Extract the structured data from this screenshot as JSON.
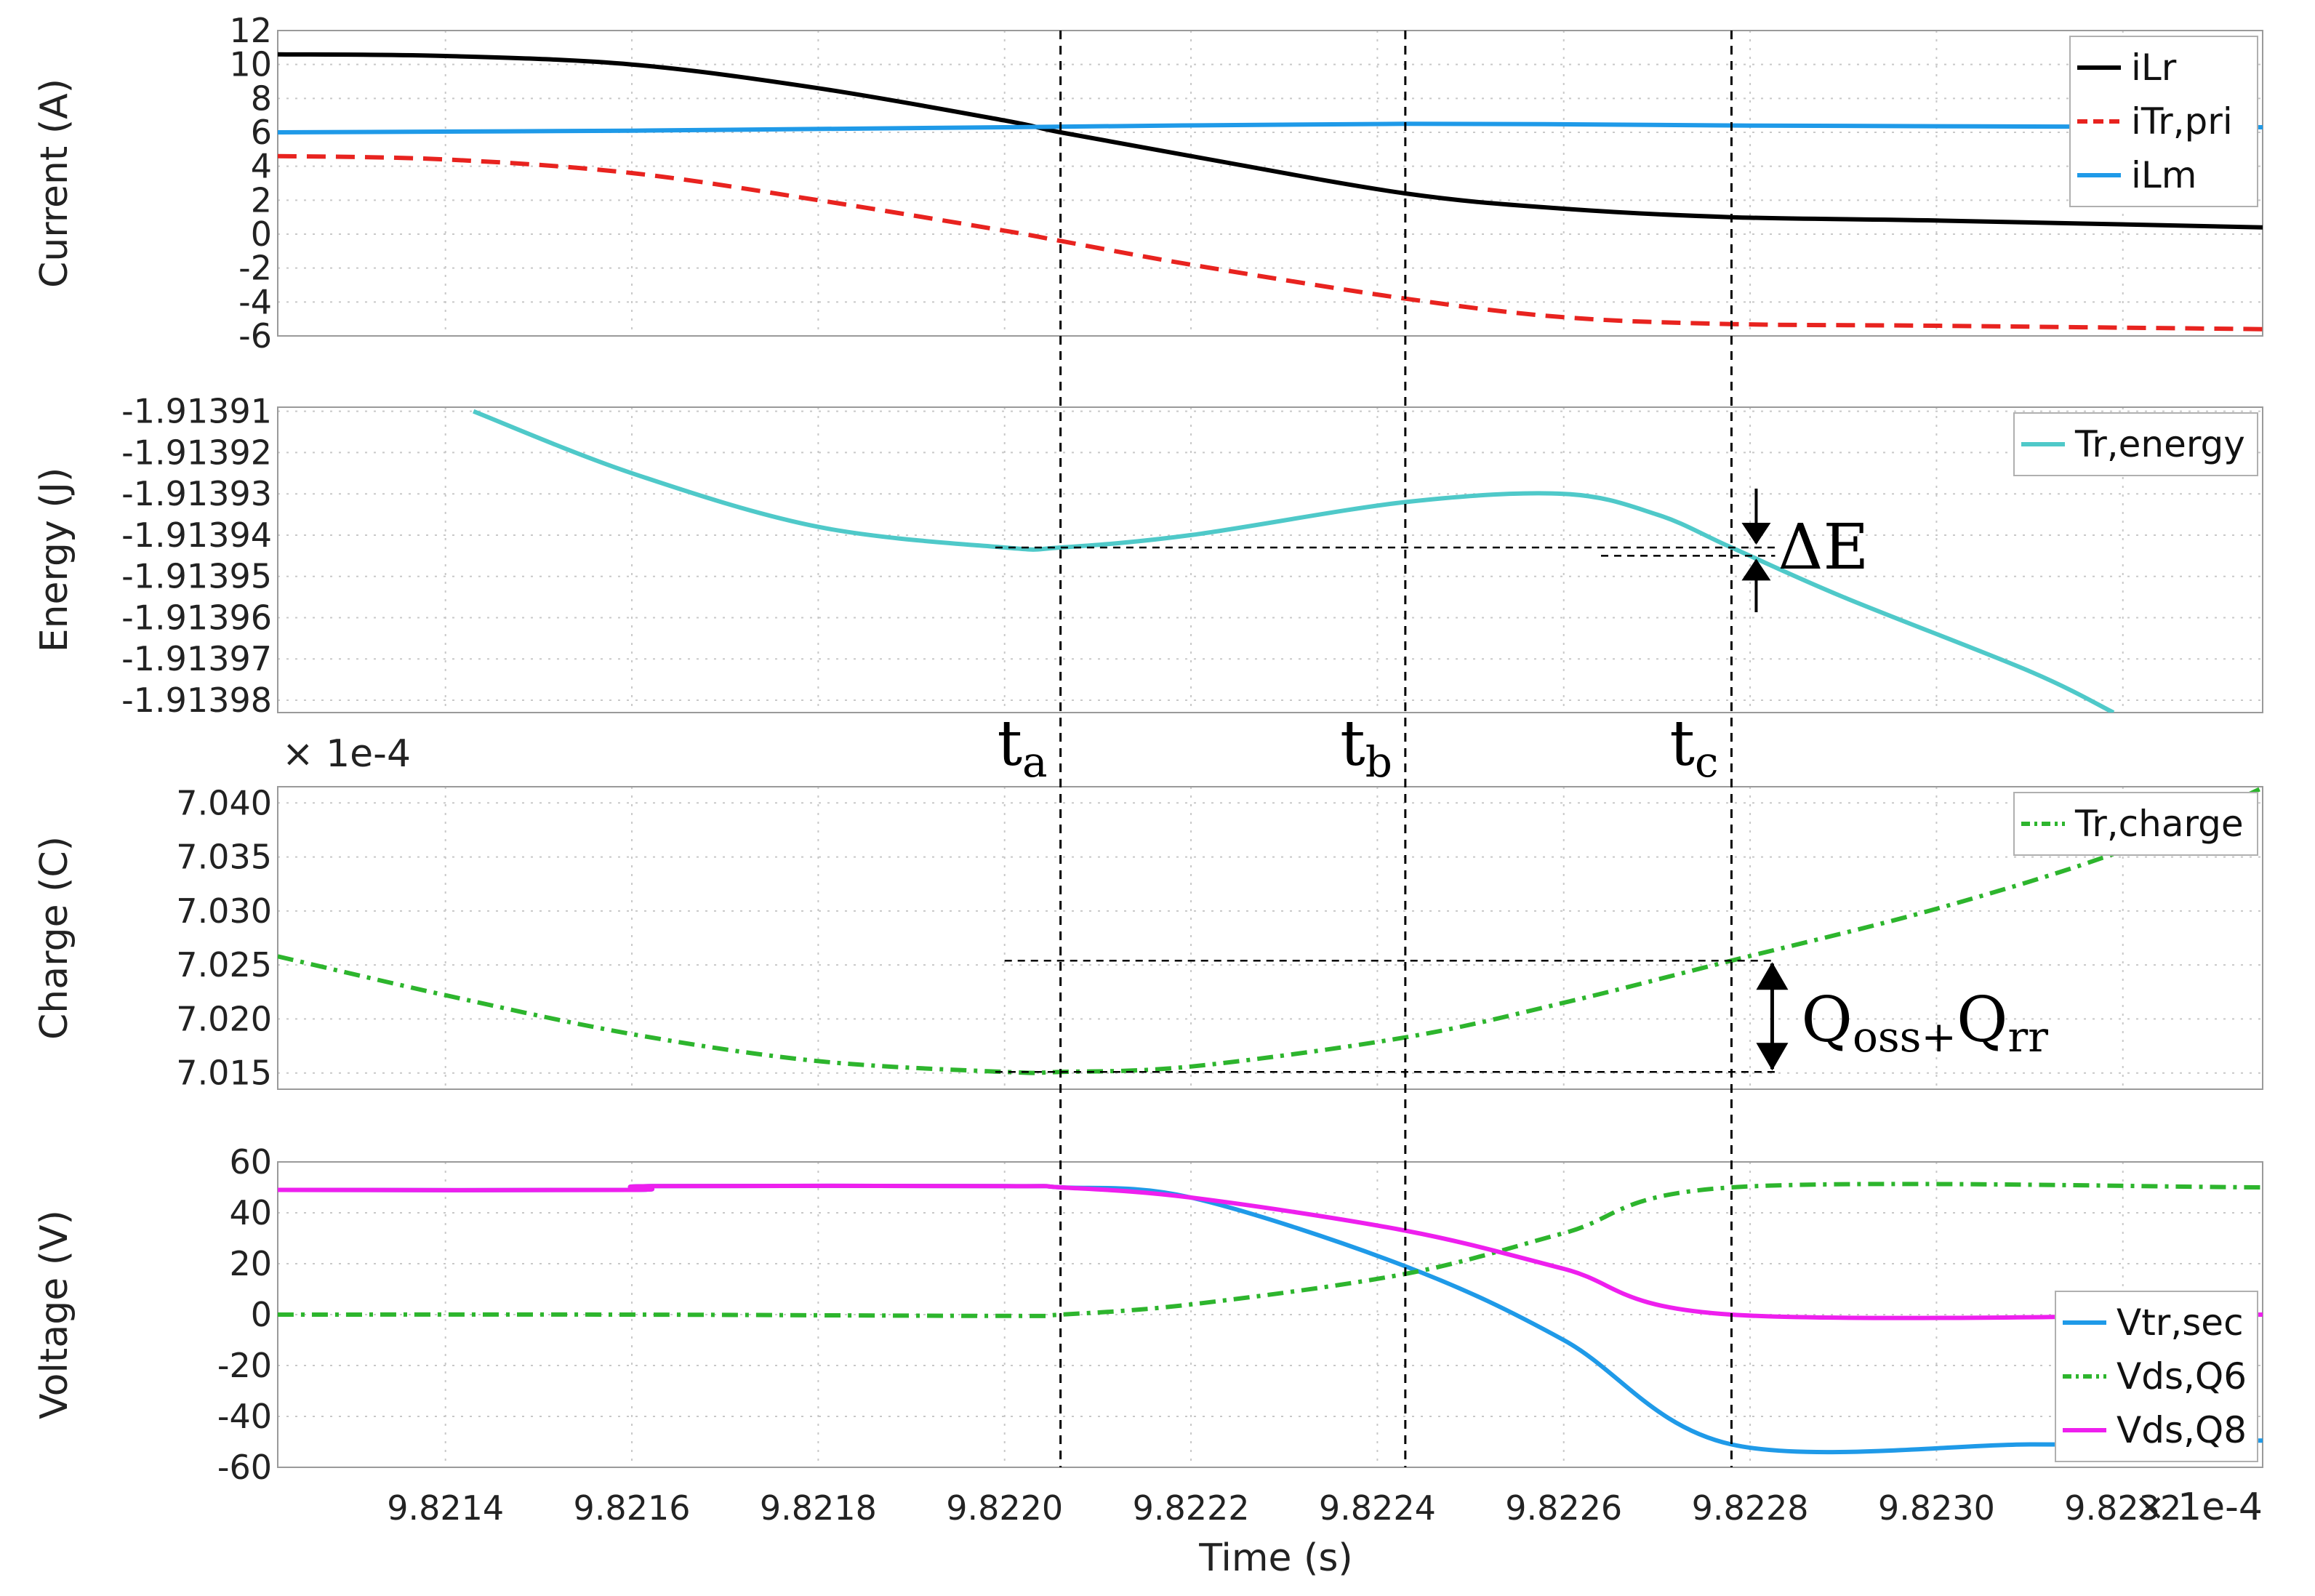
{
  "figure": {
    "xlabel": "Time (s)",
    "x_multiplier": "× 1e-4",
    "x_range": [
      9.82122,
      9.82335
    ],
    "x_ticks": [
      9.8214,
      9.8216,
      9.8218,
      9.822,
      9.8222,
      9.8224,
      9.8226,
      9.8228,
      9.823,
      9.8232
    ],
    "x_tick_labels": [
      "9.8214",
      "9.8216",
      "9.8218",
      "9.8220",
      "9.8222",
      "9.8224",
      "9.8226",
      "9.8228",
      "9.8230",
      "9.8232"
    ],
    "colors": {
      "iLr": "#000000",
      "iTr_pri": "#e8231f",
      "iLm": "#1f9ae8",
      "Tr_energy": "#4fc9c9",
      "Tr_charge": "#2db52d",
      "Vtr_sec": "#1f9ae8",
      "Vds_Q6": "#2db52d",
      "Vds_Q8": "#ee1fee"
    },
    "markers": [
      {
        "label": "t",
        "sub": "a",
        "x": 9.82206
      },
      {
        "label": "t",
        "sub": "b",
        "x": 9.82243
      },
      {
        "label": "t",
        "sub": "c",
        "x": 9.82278
      }
    ],
    "annotations": {
      "delta_e": "ΔE",
      "q_main": "Q",
      "q_sub1": "oss+",
      "q_main2": "Q",
      "q_sub2": "rr"
    }
  },
  "chart_data": [
    {
      "type": "line",
      "id": "current",
      "title": "",
      "xlabel": "Time (s)",
      "ylabel": "Current (A)",
      "ylim": [
        -6,
        12
      ],
      "yticks": [
        -6,
        -4,
        -2,
        0,
        2,
        4,
        6,
        8,
        10,
        12
      ],
      "ytick_labels": [
        "-6",
        "-4",
        "-2",
        "0",
        "2",
        "4",
        "6",
        "8",
        "10",
        "12"
      ],
      "legend": "top-right",
      "series": [
        {
          "name": "iLr",
          "color": "#000000",
          "dash": "solid",
          "x": [
            9.82122,
            9.8214,
            9.8216,
            9.8218,
            9.822,
            9.82206,
            9.8222,
            9.82243,
            9.8226,
            9.82278,
            9.823,
            9.82335
          ],
          "y": [
            10.6,
            10.5,
            10.0,
            8.6,
            6.7,
            6.0,
            4.6,
            2.4,
            1.5,
            1.0,
            0.8,
            0.4
          ]
        },
        {
          "name": "iTr,pri",
          "color": "#e8231f",
          "dash": "dashed",
          "x": [
            9.82122,
            9.8214,
            9.8216,
            9.8218,
            9.822,
            9.82206,
            9.8222,
            9.82243,
            9.8226,
            9.82278,
            9.823,
            9.82335
          ],
          "y": [
            4.6,
            4.4,
            3.6,
            2.0,
            0.2,
            -0.4,
            -1.8,
            -3.8,
            -4.9,
            -5.3,
            -5.4,
            -5.6
          ]
        },
        {
          "name": "iLm",
          "color": "#1f9ae8",
          "dash": "solid",
          "x": [
            9.82122,
            9.8216,
            9.822,
            9.82243,
            9.8228,
            9.82335
          ],
          "y": [
            6.0,
            6.1,
            6.3,
            6.5,
            6.4,
            6.3
          ]
        }
      ]
    },
    {
      "type": "line",
      "id": "energy",
      "title": "",
      "xlabel": "Time (s)",
      "ylabel": "Energy (J)",
      "ylim": [
        -1.913983,
        -1.913909
      ],
      "yticks": [
        -1.91398,
        -1.91397,
        -1.91396,
        -1.91395,
        -1.91394,
        -1.91393,
        -1.91392,
        -1.91391
      ],
      "ytick_labels": [
        "-1.91398",
        "-1.91397",
        "-1.91396",
        "-1.91395",
        "-1.91394",
        "-1.91393",
        "-1.91392",
        "-1.91391"
      ],
      "legend": "top-right",
      "series": [
        {
          "name": "Tr,energy",
          "color": "#4fc9c9",
          "dash": "solid",
          "x": [
            9.82143,
            9.8216,
            9.8218,
            9.822,
            9.82206,
            9.8222,
            9.82243,
            9.8226,
            9.8227,
            9.82278,
            9.8229,
            9.8231,
            9.82319
          ],
          "y": [
            -1.91391,
            -1.913925,
            -1.913938,
            -1.913943,
            -1.913943,
            -1.91394,
            -1.913932,
            -1.91393,
            -1.913935,
            -1.913943,
            -1.913955,
            -1.913973,
            -1.913983
          ]
        }
      ]
    },
    {
      "type": "line",
      "id": "charge",
      "title": "",
      "xlabel": "Time (s)",
      "ylabel": "Charge (C)",
      "y_multiplier": "× 1e-4",
      "ylim": [
        7.0135,
        7.0415
      ],
      "yticks": [
        7.015,
        7.02,
        7.025,
        7.03,
        7.035,
        7.04
      ],
      "ytick_labels": [
        "7.015",
        "7.020",
        "7.025",
        "7.030",
        "7.035",
        "7.040"
      ],
      "legend": "top-right",
      "series": [
        {
          "name": "Tr,charge",
          "color": "#2db52d",
          "dash": "dashdot",
          "x": [
            9.82122,
            9.8214,
            9.8216,
            9.8218,
            9.822,
            9.82206,
            9.8222,
            9.82243,
            9.8226,
            9.82278,
            9.823,
            9.8232,
            9.82335
          ],
          "y": [
            7.0258,
            7.0222,
            7.0186,
            7.0161,
            7.0151,
            7.0151,
            7.0156,
            7.0183,
            7.0215,
            7.0254,
            7.0302,
            7.0356,
            7.0414
          ]
        }
      ]
    },
    {
      "type": "line",
      "id": "voltage",
      "title": "",
      "xlabel": "Time (s)",
      "ylabel": "Voltage (V)",
      "ylim": [
        -60,
        60
      ],
      "yticks": [
        -60,
        -40,
        -20,
        0,
        20,
        40,
        60
      ],
      "ytick_labels": [
        "-60",
        "-40",
        "-20",
        "0",
        "20",
        "40",
        "60"
      ],
      "legend": "bottom-right",
      "series": [
        {
          "name": "Vtr,sec",
          "color": "#1f9ae8",
          "dash": "solid",
          "x": [
            9.82122,
            9.8216,
            9.82162,
            9.822,
            9.82206,
            9.8222,
            9.82243,
            9.8226,
            9.82278,
            9.8231,
            9.82325,
            9.82326,
            9.82335
          ],
          "y": [
            49,
            49,
            50.5,
            50.5,
            50,
            46,
            19,
            -10,
            -51,
            -51,
            -51,
            -49.5,
            -49.5
          ]
        },
        {
          "name": "Vds,Q6",
          "color": "#2db52d",
          "dash": "dashdot",
          "x": [
            9.82122,
            9.8216,
            9.822,
            9.82206,
            9.8222,
            9.82243,
            9.8226,
            9.82278,
            9.82335
          ],
          "y": [
            0,
            0,
            -0.5,
            0,
            4,
            16,
            32,
            50,
            50
          ]
        },
        {
          "name": "Vds,Q8",
          "color": "#ee1fee",
          "dash": "solid",
          "x": [
            9.82122,
            9.8216,
            9.82162,
            9.822,
            9.82206,
            9.8222,
            9.82243,
            9.8226,
            9.82278,
            9.82335
          ],
          "y": [
            49,
            49,
            50.5,
            50.5,
            50,
            46,
            33,
            18,
            0,
            0
          ]
        }
      ]
    }
  ]
}
